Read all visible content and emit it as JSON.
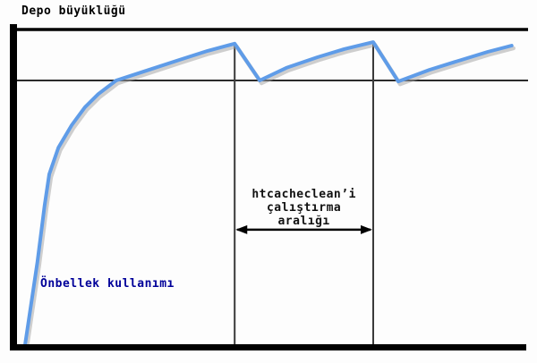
{
  "labels": {
    "title": "Depo büyüklüğü",
    "curve": "Önbellek kullanımı",
    "interval_lines": [
      "htcacheclean’i",
      "çalıştırma",
      "aralığı"
    ]
  },
  "colors": {
    "background": "#fdfdfd",
    "axis": "#000000",
    "guide_line": "#2b2b2b",
    "event_line": "#3a3a3a",
    "curve": "#5f9ce8",
    "curve_shadow": "#a0a0a0",
    "arrow": "#000000",
    "title_text": "#000000",
    "curve_label_text": "#000099",
    "interval_text": "#111111"
  },
  "chart_data": {
    "type": "line",
    "title": "Depo büyüklüğü",
    "xlabel": "",
    "ylabel": "",
    "xlim": [
      0,
      100
    ],
    "ylim": [
      0,
      100
    ],
    "grid": false,
    "legend": false,
    "series": [
      {
        "name": "Önbellek kullanımı",
        "x": [
          1.6,
          4.0,
          5.4,
          6.3,
          8.1,
          10.7,
          13.3,
          15.9,
          19.4,
          24.7,
          31.7,
          37.3,
          42.6,
          47.5,
          52.7,
          58.8,
          64.1,
          69.7,
          74.6,
          80.7,
          86.9,
          92.1,
          96.8
        ],
        "y": [
          0,
          26.1,
          44.0,
          54.0,
          62.5,
          69.6,
          75.3,
          79.5,
          83.8,
          86.6,
          90.3,
          93.2,
          95.5,
          83.8,
          87.8,
          91.2,
          93.8,
          96.0,
          83.5,
          87.2,
          90.3,
          92.9,
          94.9
        ]
      }
    ],
    "reference_lines": [
      {
        "name": "storage-limit-line",
        "label": "Depo büyüklüğü",
        "y": 100
      },
      {
        "name": "clean-threshold-line",
        "label": "",
        "y": 83.8
      }
    ],
    "event_lines": [
      {
        "name": "htcacheclean-run-line-1",
        "x": 42.6,
        "y_top": 95.5
      },
      {
        "name": "htcacheclean-run-line-2",
        "x": 69.7,
        "y_top": 96.0
      }
    ],
    "interval_annotation": {
      "text": "htcacheclean’i çalıştırma aralığı",
      "x_from": 42.6,
      "x_to": 69.7,
      "y": 36.4
    }
  }
}
